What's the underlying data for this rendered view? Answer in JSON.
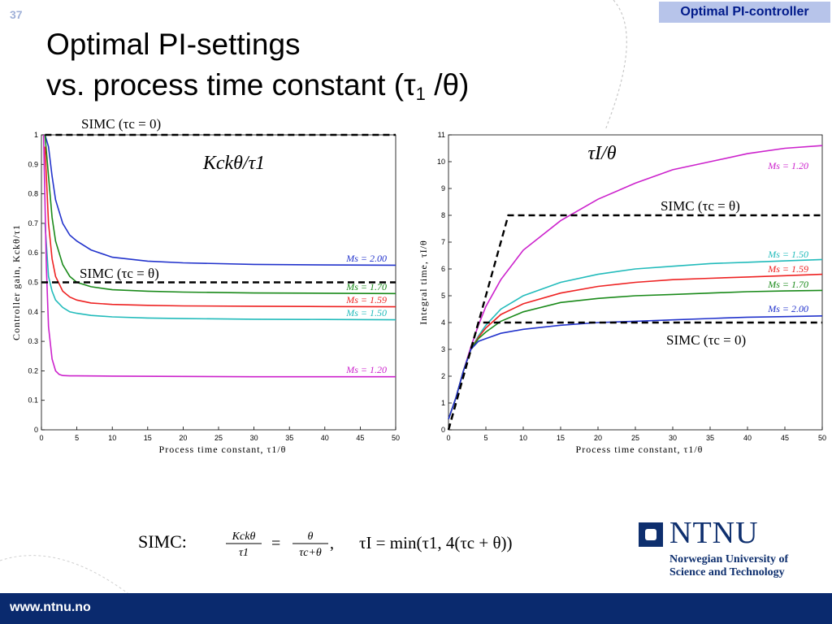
{
  "slide": {
    "number": "37",
    "topic_badge": "Optimal PI-controller",
    "title_line1": "Optimal PI-settings",
    "title_line2_prefix": "vs. process time constant (",
    "title_line2_tau": "τ",
    "title_line2_sub": "1",
    "title_line2_suffix": " /θ)",
    "footer_url": "www.ntnu.no"
  },
  "logo": {
    "name": "NTNU",
    "subtitle_line1": "Norwegian University of",
    "subtitle_line2": "Science and Technology"
  },
  "formula": {
    "lead": "SIMC:",
    "kc_num": "Kckθ",
    "kc_den": "τ1",
    "theta_num": "θ",
    "theta_den": "τc+θ",
    "ti_text": "τI = min(τ1, 4(τc + θ))"
  },
  "colors": {
    "ms120": "#cc22cc",
    "ms150": "#22bbbb",
    "ms159": "#ee2222",
    "ms170": "#1a8a1a",
    "ms200": "#2233cc",
    "simc": "#000000",
    "brand": "#0e2f6e",
    "badge": "#b7c4ea"
  },
  "chart_data": [
    {
      "type": "line",
      "title": "Kckθ/τ1",
      "xlabel": "Process time constant, τ1/θ",
      "ylabel": "Controller gain, Kckθ/τ1",
      "xlim": [
        0,
        50
      ],
      "ylim": [
        0,
        1
      ],
      "xticks": [
        "0",
        "5",
        "10",
        "15",
        "20",
        "25",
        "30",
        "35",
        "40",
        "45",
        "50"
      ],
      "yticks": [
        "0",
        "0.1",
        "0.2",
        "0.3",
        "0.4",
        "0.5",
        "0.6",
        "0.7",
        "0.8",
        "0.9",
        "1"
      ],
      "grid": false,
      "series": [
        {
          "name": "Ms = 2.00",
          "color_key": "ms200",
          "x": [
            0.5,
            1,
            1.5,
            2,
            3,
            4,
            5,
            7,
            10,
            15,
            20,
            30,
            40,
            50
          ],
          "y": [
            1.0,
            0.96,
            0.86,
            0.78,
            0.7,
            0.66,
            0.64,
            0.61,
            0.585,
            0.572,
            0.566,
            0.561,
            0.559,
            0.558
          ]
        },
        {
          "name": "Ms = 1.70",
          "color_key": "ms170",
          "x": [
            0.5,
            1,
            1.5,
            2,
            3,
            4,
            5,
            7,
            10,
            15,
            20,
            30,
            40,
            50
          ],
          "y": [
            1.0,
            0.86,
            0.72,
            0.64,
            0.56,
            0.52,
            0.5,
            0.485,
            0.475,
            0.47,
            0.467,
            0.464,
            0.463,
            0.462
          ]
        },
        {
          "name": "Ms = 1.59",
          "color_key": "ms159",
          "x": [
            0.5,
            1,
            1.5,
            2,
            3,
            4,
            5,
            7,
            10,
            15,
            20,
            30,
            40,
            50
          ],
          "y": [
            0.96,
            0.7,
            0.58,
            0.52,
            0.47,
            0.45,
            0.44,
            0.43,
            0.425,
            0.422,
            0.42,
            0.419,
            0.418,
            0.417
          ]
        },
        {
          "name": "Ms = 1.50",
          "color_key": "ms150",
          "x": [
            0.5,
            1,
            1.5,
            2,
            3,
            4,
            5,
            7,
            10,
            15,
            20,
            30,
            40,
            50
          ],
          "y": [
            0.7,
            0.52,
            0.47,
            0.44,
            0.415,
            0.4,
            0.395,
            0.388,
            0.383,
            0.379,
            0.377,
            0.375,
            0.374,
            0.373
          ]
        },
        {
          "name": "Ms = 1.20",
          "color_key": "ms120",
          "x": [
            0.3,
            0.7,
            1,
            1.5,
            2,
            2.5,
            3,
            4,
            5,
            10,
            20,
            30,
            40,
            50
          ],
          "y": [
            1.0,
            0.55,
            0.35,
            0.24,
            0.2,
            0.188,
            0.184,
            0.183,
            0.183,
            0.182,
            0.181,
            0.18,
            0.18,
            0.18
          ]
        }
      ],
      "simc_lines": [
        {
          "label": "SIMC (τc = 0)",
          "x": [
            0.5,
            50
          ],
          "y": [
            1.0,
            1.0
          ]
        },
        {
          "label": "SIMC (τc = θ)",
          "x": [
            0,
            50
          ],
          "y": [
            0.5,
            0.5
          ]
        }
      ]
    },
    {
      "type": "line",
      "title": "τI/θ",
      "xlabel": "Process time constant, τ1/θ",
      "ylabel": "Integral time, τI/θ",
      "xlim": [
        0,
        50
      ],
      "ylim": [
        0,
        11
      ],
      "xticks": [
        "0",
        "5",
        "10",
        "15",
        "20",
        "25",
        "30",
        "35",
        "40",
        "45",
        "50"
      ],
      "yticks": [
        "0",
        "1",
        "2",
        "3",
        "4",
        "5",
        "6",
        "7",
        "8",
        "9",
        "10",
        "11"
      ],
      "grid": false,
      "series": [
        {
          "name": "Ms = 1.20",
          "color_key": "ms120",
          "x": [
            0,
            1,
            2,
            3,
            4,
            5,
            7,
            10,
            15,
            20,
            25,
            30,
            35,
            40,
            45,
            50
          ],
          "y": [
            0.4,
            1.2,
            2.2,
            3.1,
            3.9,
            4.6,
            5.6,
            6.7,
            7.8,
            8.6,
            9.2,
            9.7,
            10.0,
            10.3,
            10.5,
            10.6
          ]
        },
        {
          "name": "Ms = 1.50",
          "color_key": "ms150",
          "x": [
            0,
            1,
            2,
            3,
            4,
            5,
            7,
            10,
            15,
            20,
            25,
            30,
            35,
            40,
            45,
            50
          ],
          "y": [
            0.4,
            1.2,
            2.2,
            3.0,
            3.5,
            3.9,
            4.5,
            5.0,
            5.5,
            5.8,
            6.0,
            6.1,
            6.2,
            6.25,
            6.3,
            6.35
          ]
        },
        {
          "name": "Ms = 1.59",
          "color_key": "ms159",
          "x": [
            0,
            1,
            2,
            3,
            4,
            5,
            7,
            10,
            15,
            20,
            25,
            30,
            35,
            40,
            45,
            50
          ],
          "y": [
            0.4,
            1.2,
            2.2,
            3.0,
            3.45,
            3.8,
            4.3,
            4.7,
            5.1,
            5.35,
            5.5,
            5.6,
            5.65,
            5.7,
            5.75,
            5.8
          ]
        },
        {
          "name": "Ms = 1.70",
          "color_key": "ms170",
          "x": [
            0,
            1,
            2,
            3,
            4,
            5,
            7,
            10,
            15,
            20,
            25,
            30,
            35,
            40,
            45,
            50
          ],
          "y": [
            0.4,
            1.2,
            2.2,
            3.0,
            3.4,
            3.65,
            4.05,
            4.4,
            4.75,
            4.9,
            5.0,
            5.05,
            5.1,
            5.15,
            5.18,
            5.2
          ]
        },
        {
          "name": "Ms = 2.00",
          "color_key": "ms200",
          "x": [
            0,
            1,
            2,
            3,
            4,
            5,
            7,
            10,
            15,
            20,
            25,
            30,
            35,
            40,
            45,
            50
          ],
          "y": [
            0.4,
            1.2,
            2.2,
            3.0,
            3.3,
            3.4,
            3.6,
            3.75,
            3.9,
            4.0,
            4.05,
            4.1,
            4.15,
            4.2,
            4.22,
            4.25
          ]
        }
      ],
      "simc_lines": [
        {
          "label": "SIMC (τc = θ)",
          "x": [
            0,
            8,
            50
          ],
          "y": [
            0,
            8,
            8
          ]
        },
        {
          "label": "SIMC (τc = 0)",
          "x": [
            0,
            4,
            50
          ],
          "y": [
            0,
            4,
            4
          ]
        }
      ]
    }
  ]
}
